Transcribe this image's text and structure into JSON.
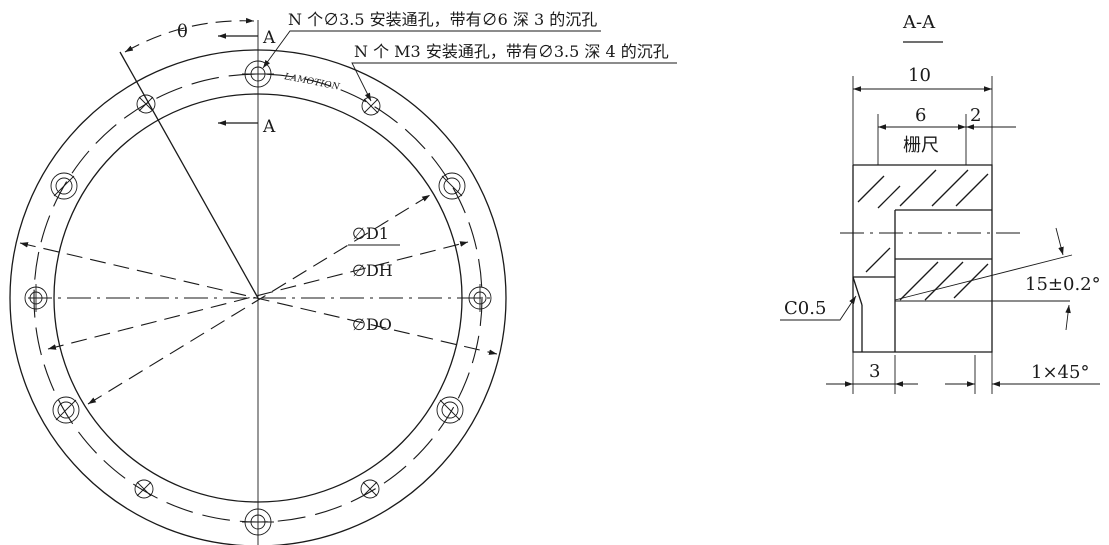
{
  "front_view": {
    "angle_label": "θ",
    "section_marker_top": "A",
    "section_marker_bottom": "A",
    "note_counterbore": "N 个∅3.5 安装通孔，带有∅6 深 3 的沉孔",
    "note_m3": "N 个 M3 安装通孔，带有∅3.5 深 4 的沉孔",
    "brand_text": "LAMOTION",
    "dim_d1": "∅D1",
    "dim_dh": "∅DH",
    "dim_do": "∅DO"
  },
  "section_view": {
    "title": "A-A",
    "dim_width": "10",
    "dim_scale": "6",
    "dim_right": "2",
    "scale_label": "栅尺",
    "dim_bottom": "3",
    "chamfer_left": "C0.5",
    "angle_note": "15±0.2°",
    "chamfer_right": "1×45°"
  }
}
